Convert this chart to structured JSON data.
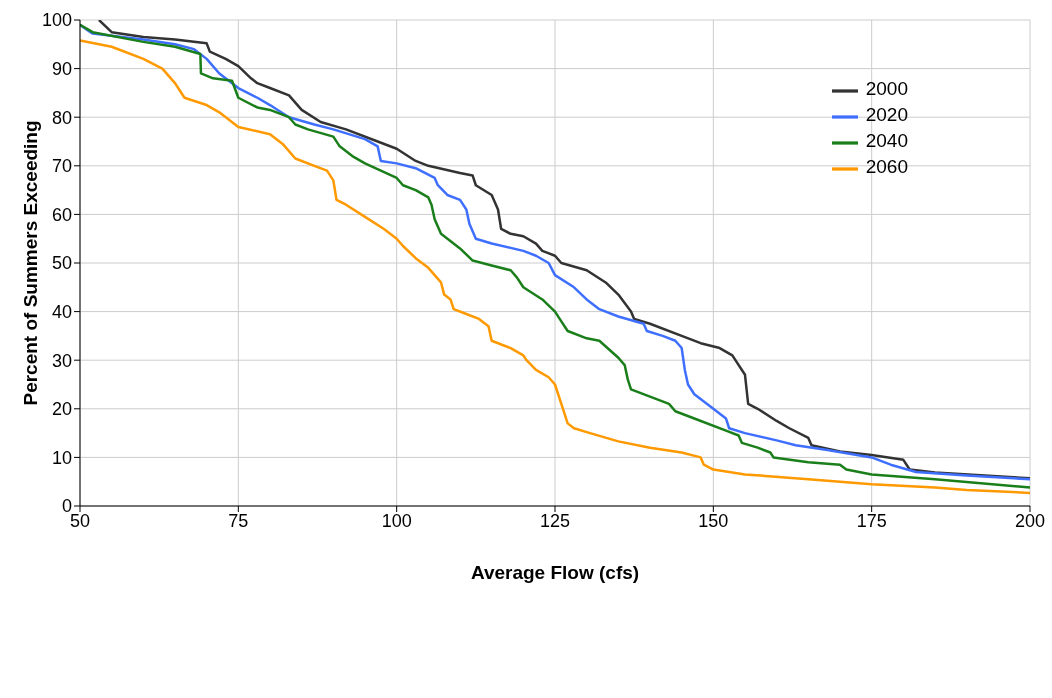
{
  "chart_data": {
    "type": "line",
    "xlabel": "Average Flow (cfs)",
    "ylabel": "Percent of Summers Exceeding",
    "xlim": [
      50,
      200
    ],
    "xticks": [
      50,
      75,
      100,
      125,
      150,
      175,
      200
    ],
    "ylim": [
      0,
      100
    ],
    "yticks": [
      0,
      10,
      20,
      30,
      40,
      50,
      60,
      70,
      80,
      90,
      100
    ],
    "grid": true,
    "legend": "top right",
    "marker": "none",
    "line_style": "solid",
    "series": [
      {
        "name": "2000",
        "color": "#333333",
        "x": [
          53,
          55,
          60,
          65,
          70,
          70.5,
          73,
          75,
          77,
          78,
          80,
          83,
          85,
          88,
          92,
          97,
          100,
          103,
          105,
          110,
          112,
          112.5,
          115,
          116,
          116.5,
          118,
          120,
          122,
          123,
          125,
          126,
          130,
          133,
          135,
          137,
          137.5,
          140,
          145,
          148,
          151,
          153,
          155,
          155.5,
          157,
          160,
          162,
          165,
          165.5,
          170,
          175,
          180,
          181,
          185,
          200
        ],
        "values": [
          100,
          97.5,
          96.5,
          96,
          95.2,
          93.5,
          92,
          90.5,
          88,
          87,
          86,
          84.5,
          81.5,
          79,
          77.5,
          75,
          73.5,
          71,
          70,
          68.5,
          68,
          66,
          64,
          61,
          57,
          56,
          55.5,
          54,
          52.5,
          51.5,
          50,
          48.5,
          46,
          43.5,
          40,
          38.5,
          37.5,
          35,
          33.5,
          32.5,
          31,
          27,
          21,
          20,
          17.5,
          16,
          14,
          12.5,
          11.2,
          10.5,
          9.5,
          7.5,
          6.9,
          5.7
        ]
      },
      {
        "name": "2020",
        "color": "#3f6fff",
        "x": [
          50,
          52,
          60,
          65,
          68,
          70,
          72,
          75,
          78,
          80,
          83,
          87,
          90,
          95,
          97,
          97.5,
          100,
          103,
          106,
          106.5,
          108,
          110,
          111,
          111.5,
          112.5,
          115,
          120,
          122,
          124,
          125,
          128,
          130,
          132,
          135,
          139,
          139.5,
          142,
          144,
          145,
          145.5,
          146,
          147,
          150,
          152,
          152.5,
          155,
          160,
          163,
          168,
          175,
          178,
          182,
          190,
          200
        ],
        "values": [
          99,
          97.2,
          96,
          95,
          94,
          92,
          89,
          86,
          84,
          82.5,
          80,
          78.5,
          77.5,
          75.5,
          74,
          71,
          70.5,
          69.5,
          67.5,
          66,
          64,
          63,
          61,
          58,
          55,
          54,
          52.5,
          51.5,
          50,
          47.5,
          45,
          42.5,
          40.5,
          39,
          37.5,
          36,
          35,
          34,
          32.5,
          28,
          25,
          23,
          20,
          18,
          16,
          15,
          13.5,
          12.5,
          11.5,
          10,
          8.5,
          7,
          6.3,
          5.5
        ]
      },
      {
        "name": "2040",
        "color": "#1a7f1a",
        "x": [
          50,
          52,
          60,
          65,
          69,
          69.1,
          71,
          74,
          75,
          78,
          80,
          83,
          84,
          86,
          90,
          91,
          93,
          95,
          100,
          101,
          103,
          105,
          105.5,
          106,
          107,
          110,
          112,
          115,
          118,
          119,
          120,
          123,
          125,
          126,
          127,
          130,
          132,
          135,
          136,
          136.5,
          137,
          140,
          143,
          144,
          147,
          152,
          154,
          154.5,
          157,
          159,
          159.5,
          165,
          170,
          171,
          175,
          185,
          200
        ],
        "values": [
          99,
          97.5,
          95.5,
          94.5,
          93,
          89,
          88,
          87.5,
          84,
          82,
          81.5,
          80,
          78.5,
          77.5,
          76,
          74,
          72,
          70.5,
          67.5,
          66,
          65,
          63.5,
          62,
          59,
          56,
          53,
          50.5,
          49.5,
          48.5,
          47,
          45,
          42.5,
          40,
          38,
          36,
          34.5,
          34,
          30.5,
          29,
          26,
          24,
          22.5,
          21,
          19.5,
          18,
          15.5,
          14.5,
          13,
          12,
          11,
          10,
          9,
          8.5,
          7.5,
          6.5,
          5.5,
          3.8
        ]
      },
      {
        "name": "2060",
        "color": "#ff9900",
        "x": [
          50,
          55,
          60,
          63,
          65,
          65.5,
          66.5,
          70,
          72,
          75,
          80,
          82,
          84,
          87,
          89,
          90,
          90.5,
          92,
          95,
          98,
          100,
          101,
          103,
          105,
          107,
          107.5,
          108.5,
          109,
          111,
          113,
          114.5,
          115,
          118,
          120,
          120.5,
          122,
          124,
          125,
          126,
          127,
          128,
          130,
          135,
          140,
          145,
          148,
          148.5,
          150,
          155,
          165,
          175,
          185,
          190,
          200
        ],
        "values": [
          95.8,
          94.5,
          92,
          90,
          87,
          86,
          84,
          82.5,
          81,
          78,
          76.5,
          74.5,
          71.5,
          70,
          69,
          67,
          63,
          62,
          59.5,
          57,
          55,
          53.5,
          51,
          49,
          46,
          43.5,
          42.5,
          40.5,
          39.5,
          38.5,
          37,
          34,
          32.5,
          31,
          30,
          28,
          26.5,
          25,
          21,
          17,
          16,
          15.2,
          13.3,
          12,
          11,
          10,
          8.5,
          7.5,
          6.5,
          5.5,
          4.5,
          3.8,
          3.3,
          2.7
        ]
      }
    ]
  }
}
